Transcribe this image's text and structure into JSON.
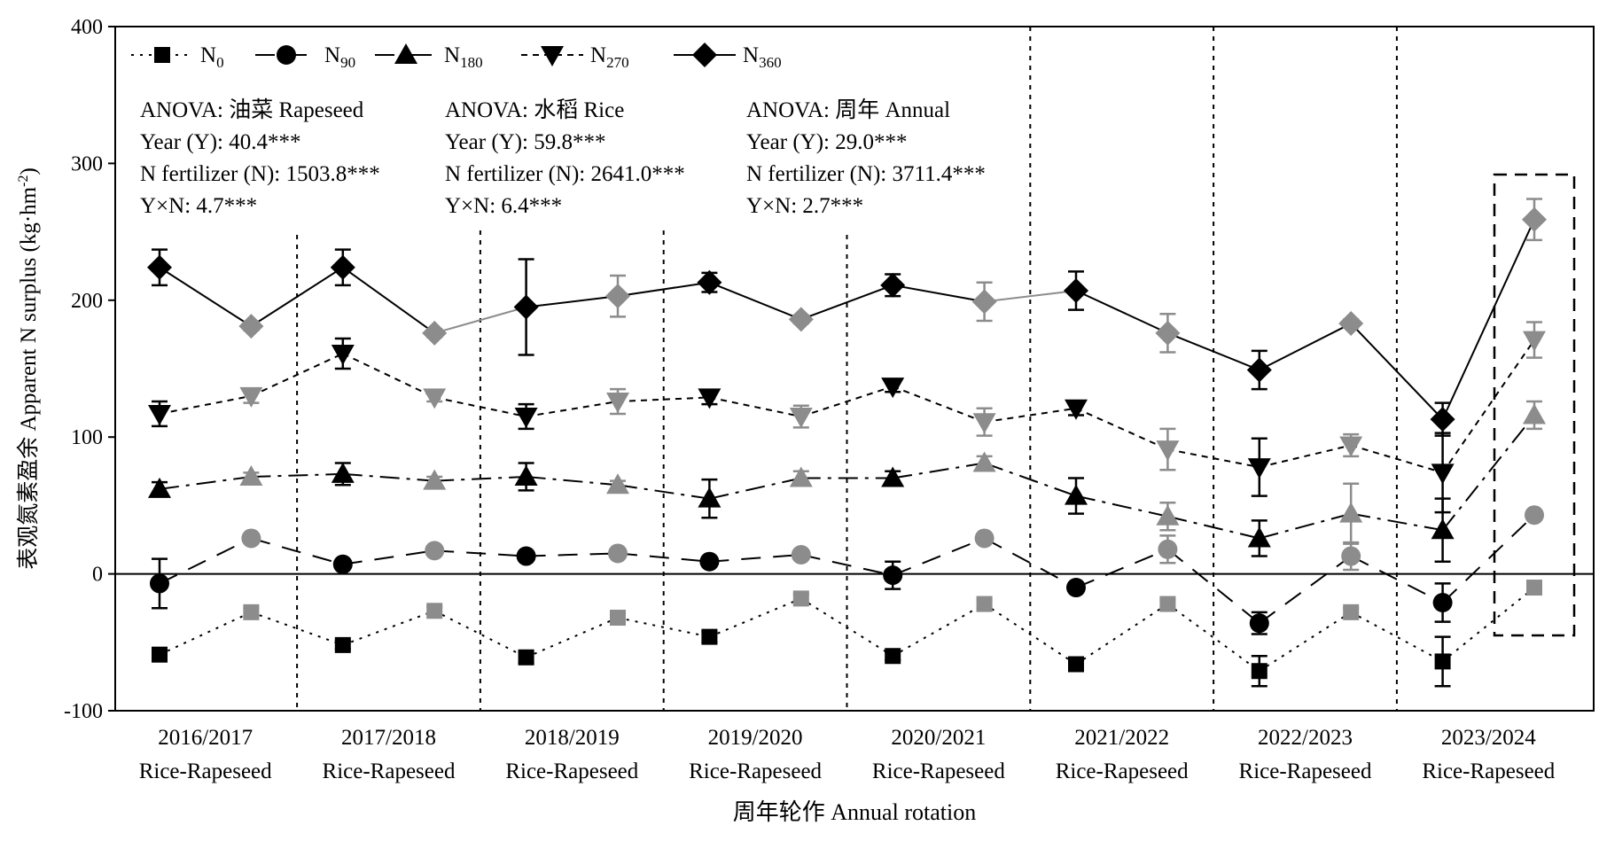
{
  "chart_data": {
    "type": "line",
    "ylabel": "表观氮素盈余 Apparent N surplus (kg·hm⁻²)",
    "ylabel_cn": "表观氮素盈余 Apparent N surplus (kg·hm",
    "ylabel_sup": "-2",
    "ylabel_end": ")",
    "xlabel": "周年轮作 Annual rotation",
    "ylim": [
      -100,
      400
    ],
    "yticks": [
      "-100",
      "0",
      "100",
      "200",
      "300",
      "400"
    ],
    "periods": [
      {
        "year": "2016/2017",
        "crop": "Rice-Rapeseed"
      },
      {
        "year": "2017/2018",
        "crop": "Rice-Rapeseed"
      },
      {
        "year": "2018/2019",
        "crop": "Rice-Rapeseed"
      },
      {
        "year": "2019/2020",
        "crop": "Rice-Rapeseed"
      },
      {
        "year": "2020/2021",
        "crop": "Rice-Rapeseed"
      },
      {
        "year": "2021/2022",
        "crop": "Rice-Rapeseed"
      },
      {
        "year": "2022/2023",
        "crop": "Rice-Rapeseed"
      },
      {
        "year": "2023/2024",
        "crop": "Rice-Rapeseed"
      }
    ],
    "point_seasons": [
      "Rice",
      "Rapeseed",
      "Rice",
      "Rapeseed",
      "Rice",
      "Rapeseed",
      "Rice",
      "Rapeseed",
      "Rice",
      "Rapeseed",
      "Rice",
      "Rapeseed",
      "Rice",
      "Rapeseed",
      "Rice",
      "Annual"
    ],
    "series": [
      {
        "name": "N",
        "sub": "0",
        "marker": "square",
        "dash": "dot",
        "values": [
          -59,
          -28,
          -52,
          -27,
          -61,
          -32,
          -46,
          -18,
          -60,
          -22,
          -66,
          -22,
          -71,
          -28,
          -64,
          -10
        ],
        "errors": [
          3,
          3,
          3,
          3,
          4,
          3,
          4,
          3,
          3,
          3,
          3,
          3,
          11,
          3,
          18,
          3
        ]
      },
      {
        "name": "N",
        "sub": "90",
        "marker": "circle",
        "dash": "dash",
        "values": [
          -7,
          26,
          7,
          17,
          13,
          15,
          9,
          14,
          -1,
          26,
          -10,
          18,
          -36,
          13,
          -21,
          43
        ],
        "errors": [
          18,
          3,
          3,
          3,
          3,
          3,
          3,
          3,
          10,
          3,
          3,
          10,
          8,
          10,
          14,
          3
        ]
      },
      {
        "name": "N",
        "sub": "180",
        "marker": "triangle-up",
        "dash": "dashdot",
        "values": [
          62,
          71,
          73,
          68,
          71,
          65,
          55,
          70,
          70,
          81,
          57,
          42,
          26,
          44,
          32,
          116
        ],
        "errors": [
          5,
          3,
          8,
          3,
          10,
          3,
          14,
          5,
          5,
          5,
          13,
          10,
          13,
          22,
          23,
          10
        ]
      },
      {
        "name": "N",
        "sub": "270",
        "marker": "triangle-down",
        "dash": "shortdash",
        "values": [
          117,
          130,
          161,
          129,
          115,
          126,
          129,
          115,
          137,
          111,
          121,
          91,
          78,
          94,
          74,
          171
        ],
        "errors": [
          9,
          5,
          11,
          3,
          9,
          9,
          5,
          8,
          4,
          10,
          5,
          15,
          21,
          8,
          29,
          13
        ]
      },
      {
        "name": "N",
        "sub": "360",
        "marker": "diamond",
        "dash": "solid",
        "values": [
          224,
          181,
          224,
          176,
          195,
          203,
          213,
          186,
          211,
          199,
          207,
          176,
          149,
          183,
          113,
          259
        ],
        "errors": [
          13,
          3,
          13,
          3,
          35,
          15,
          7,
          3,
          8,
          14,
          14,
          14,
          14,
          3,
          12,
          15
        ]
      }
    ],
    "anova": [
      {
        "title": "ANOVA: 油菜 Rapeseed",
        "year": "Year (Y): 40.4***",
        "nfert": "N fertilizer (N): 1503.8***",
        "inter": "Y×N: 4.7***"
      },
      {
        "title": "ANOVA: 水稻 Rice",
        "year": "Year (Y): 59.8***",
        "nfert": "N fertilizer (N): 2641.0***",
        "inter": "Y×N: 6.4***"
      },
      {
        "title": "ANOVA: 周年 Annual",
        "year": "Year (Y): 29.0***",
        "nfert": "N fertilizer (N): 3711.4***",
        "inter": "Y×N: 2.7***"
      }
    ],
    "colors": {
      "rice": "#000000",
      "rapeseed": "#8c8c8c",
      "axis": "#000000"
    },
    "grid": false,
    "legend_position": "top-left"
  }
}
